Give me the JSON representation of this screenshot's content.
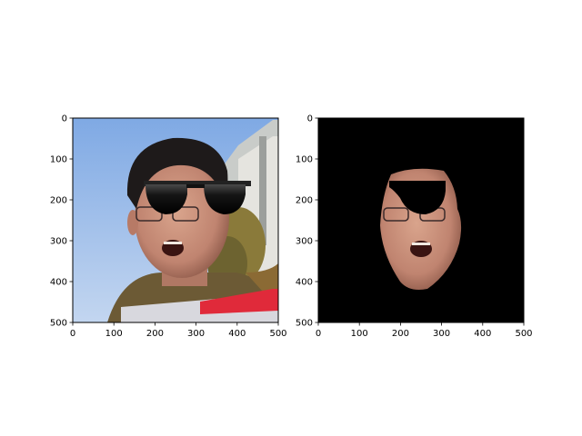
{
  "chart_data": [
    {
      "type": "image",
      "panel": "left",
      "description_of_content": "photo",
      "xlim": [
        0,
        500
      ],
      "ylim": [
        500,
        0
      ],
      "xticks": [
        0,
        100,
        200,
        300,
        400,
        500
      ],
      "yticks": [
        0,
        100,
        200,
        300,
        400,
        500
      ],
      "xtick_labels": [
        "0",
        "100",
        "200",
        "300",
        "400",
        "500"
      ],
      "ytick_labels": [
        "0",
        "100",
        "200",
        "300",
        "400",
        "500"
      ]
    },
    {
      "type": "image",
      "panel": "right",
      "description_of_content": "masked face on black background",
      "xlim": [
        0,
        500
      ],
      "ylim": [
        500,
        0
      ],
      "xticks": [
        0,
        100,
        200,
        300,
        400,
        500
      ],
      "yticks": [
        0,
        100,
        200,
        300,
        400,
        500
      ],
      "xtick_labels": [
        "0",
        "100",
        "200",
        "300",
        "400",
        "500"
      ],
      "ytick_labels": [
        "0",
        "100",
        "200",
        "300",
        "400",
        "500"
      ]
    }
  ],
  "colors": {
    "sky": "#8fb4e6",
    "sky_light": "#bcd3f0",
    "hair": "#1e1a1a",
    "skin": "#c98f78",
    "jacket": "#6c5a35",
    "glasses": "#101010",
    "mask_bg": "#000000"
  }
}
